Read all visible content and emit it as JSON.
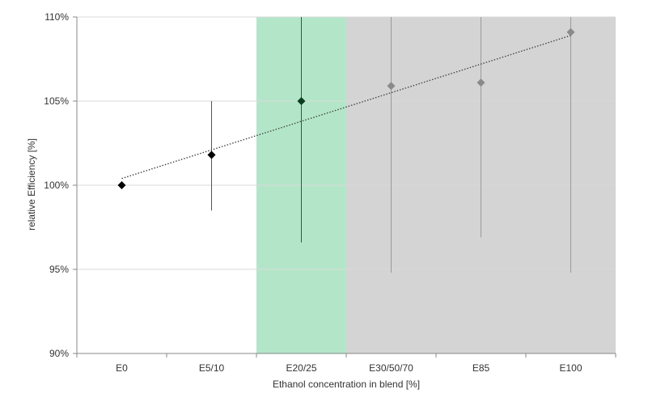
{
  "chart_data": {
    "type": "scatter",
    "categories": [
      "E0",
      "E5/10",
      "E20/25",
      "E30/50/70",
      "E85",
      "E100"
    ],
    "xlabel": "Ethanol concentration in blend [%]",
    "ylabel": "relative Efficiency  [%]",
    "ylim": [
      90,
      110
    ],
    "y_ticks": [
      "90%",
      "95%",
      "100%",
      "105%",
      "110%"
    ],
    "grid": true,
    "series": [
      {
        "values": [
          100.0,
          101.8,
          105.0,
          105.9,
          106.1,
          109.1
        ],
        "error_low": [
          null,
          98.5,
          96.6,
          94.8,
          96.9,
          94.8
        ],
        "error_high": [
          null,
          105.0,
          110.0,
          110.0,
          110.0,
          110.0
        ],
        "point_colors": [
          "#000000",
          "#000000",
          "#0b3d1f",
          "#8a8a8a",
          "#8a8a8a",
          "#8a8a8a"
        ],
        "error_colors": [
          "#555555",
          "#555555",
          "#2f5a3f",
          "#9a9a9a",
          "#9a9a9a",
          "#9a9a9a"
        ]
      }
    ],
    "trendline": {
      "style": "dotted",
      "y_start": 100.4,
      "y_end": 108.9
    },
    "shaded_regions": [
      {
        "from_category": 2,
        "to_category": 2,
        "color": "#b3e6c9"
      },
      {
        "from_category": 3,
        "to_category": 5,
        "color": "#d4d4d4"
      }
    ]
  }
}
